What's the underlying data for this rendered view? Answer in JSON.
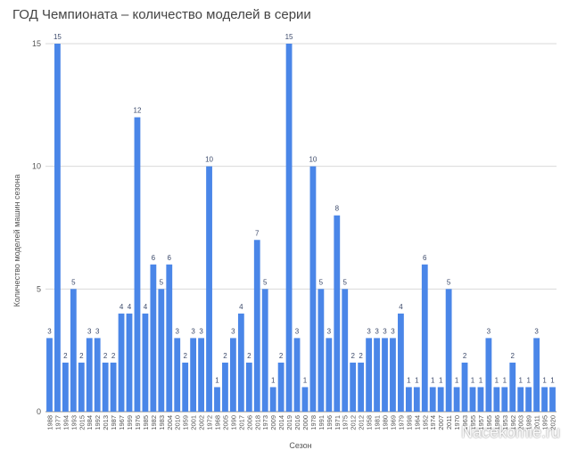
{
  "chart_data": {
    "type": "bar",
    "title": "ГОД Чемпионата – количество моделей в серии",
    "xlabel": "Сезон",
    "ylabel": "Количество моделей машин сезона",
    "ylim": [
      0,
      15
    ],
    "yticks": [
      0,
      5,
      10,
      15
    ],
    "grid": true,
    "bar_color": "#4a86e8",
    "categories": [
      "1988",
      "1977",
      "1994",
      "1993",
      "2015",
      "1984",
      "1992",
      "2013",
      "1987",
      "1967",
      "1999",
      "1976",
      "1985",
      "1982",
      "1983",
      "2004",
      "2010",
      "1959",
      "2001",
      "2002",
      "1972",
      "1968",
      "2005",
      "1990",
      "2017",
      "2006",
      "2018",
      "1973",
      "2009",
      "2014",
      "2019",
      "2016",
      "2000",
      "1978",
      "1991",
      "1996",
      "1971",
      "1975",
      "2012",
      "2012",
      "1958",
      "1981",
      "1980",
      "1969",
      "1979",
      "1998",
      "1964",
      "1952",
      "1974",
      "2007",
      "2011",
      "1970",
      "1963",
      "1955",
      "1957",
      "1965",
      "1986",
      "1953",
      "1962",
      "2003",
      "1989",
      "2011",
      "1995",
      "2020"
    ],
    "values": [
      3,
      15,
      2,
      5,
      2,
      3,
      3,
      2,
      2,
      4,
      4,
      12,
      4,
      6,
      5,
      6,
      3,
      2,
      3,
      3,
      10,
      1,
      2,
      3,
      4,
      2,
      7,
      5,
      1,
      2,
      15,
      3,
      1,
      10,
      5,
      3,
      8,
      5,
      2,
      2,
      3,
      3,
      3,
      3,
      4,
      1,
      1,
      6,
      1,
      1,
      5,
      1,
      2,
      1,
      1,
      3,
      1,
      1,
      2,
      1,
      1,
      3,
      1,
      1
    ]
  },
  "watermark": "Nacekomie.ru"
}
